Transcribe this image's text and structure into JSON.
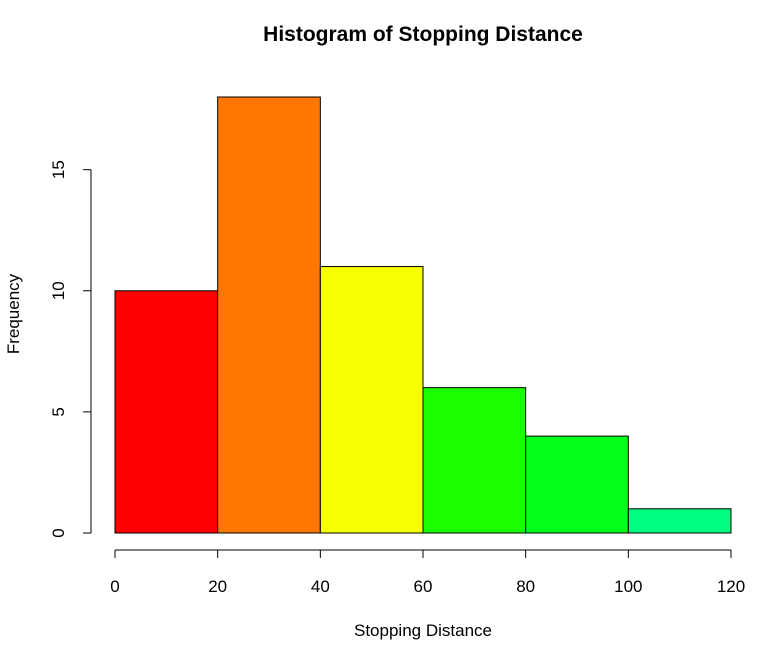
{
  "chart_data": {
    "type": "bar",
    "title": "Histogram of Stopping Distance",
    "xlabel": "Stopping Distance",
    "ylabel": "Frequency",
    "bins": [
      {
        "from": 0,
        "to": 20,
        "count": 10,
        "color": "#ff0000"
      },
      {
        "from": 20,
        "to": 40,
        "count": 18,
        "color": "#ff7700"
      },
      {
        "from": 40,
        "to": 60,
        "count": 11,
        "color": "#f7ff00"
      },
      {
        "from": 60,
        "to": 80,
        "count": 6,
        "color": "#1aff00"
      },
      {
        "from": 80,
        "to": 100,
        "count": 4,
        "color": "#00ff19"
      },
      {
        "from": 100,
        "to": 120,
        "count": 1,
        "color": "#00ff80"
      }
    ],
    "xlim": [
      0,
      120
    ],
    "ylim": [
      0,
      18
    ],
    "xticks": [
      0,
      20,
      40,
      60,
      80,
      100,
      120
    ],
    "yticks": [
      0,
      5,
      10,
      15
    ],
    "grid": false
  }
}
